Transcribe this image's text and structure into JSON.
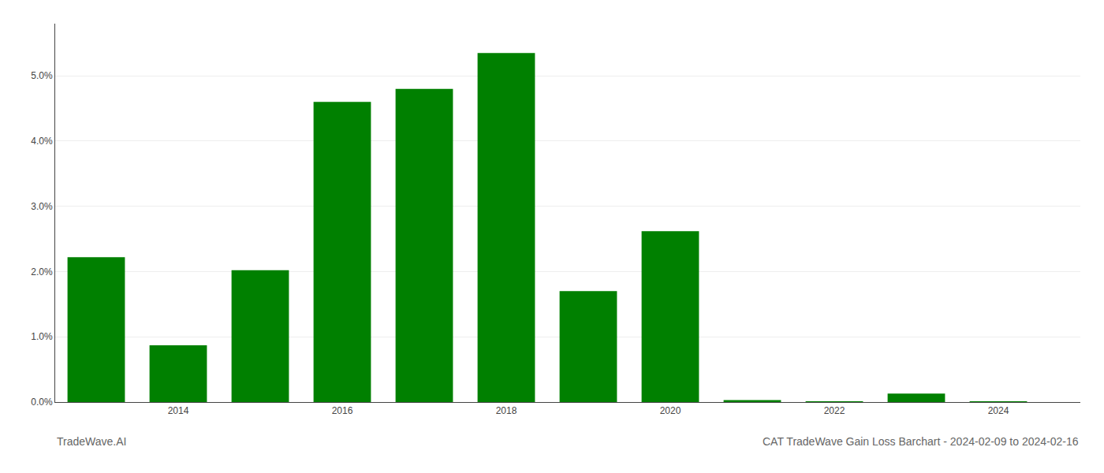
{
  "chart_data": {
    "type": "bar",
    "title": "CAT TradeWave Gain Loss Barchart - 2024-02-09 to 2024-02-16",
    "annotations": [
      "TradeWave.AI"
    ],
    "x": [
      2013,
      2014,
      2015,
      2016,
      2017,
      2018,
      2019,
      2020,
      2021,
      2022,
      2023,
      2024
    ],
    "values": [
      0.0222,
      0.0087,
      0.0202,
      0.046,
      0.048,
      0.0535,
      0.017,
      0.0262,
      0.0003,
      5e-05,
      0.0013,
      2e-05
    ],
    "color": "#008000",
    "xlim": [
      2012.5,
      2025.0
    ],
    "xticks": [
      2014,
      2016,
      2018,
      2020,
      2022,
      2024
    ],
    "ylim": [
      0,
      0.058
    ],
    "yticks": [
      {
        "value": 0.0,
        "label": "0.0%"
      },
      {
        "value": 0.01,
        "label": "1.0%"
      },
      {
        "value": 0.02,
        "label": "2.0%"
      },
      {
        "value": 0.03,
        "label": "3.0%"
      },
      {
        "value": 0.04,
        "label": "4.0%"
      },
      {
        "value": 0.05,
        "label": "5.0%"
      }
    ],
    "grid": true
  }
}
